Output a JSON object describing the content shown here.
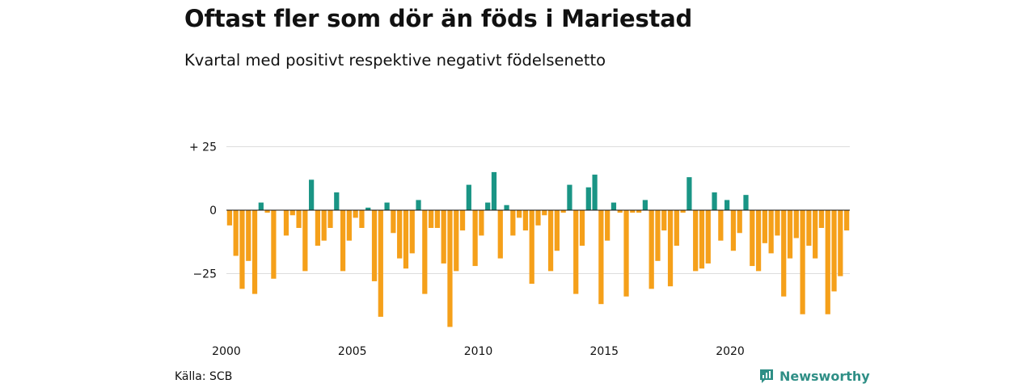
{
  "title": "Oftast fler som dör än föds i Mariestad",
  "subtitle": "Kvartal med positivt respektive negativt födelsenetto",
  "source": "Källa: SCB",
  "brand": {
    "name": "Newsworthy",
    "icon": "newsworthy-logo-icon",
    "color": "#2f8f86"
  },
  "chart_data": {
    "type": "bar",
    "title": "Oftast fler som dör än föds i Mariestad",
    "subtitle": "Kvartal med positivt respektive negativt födelsenetto",
    "xlabel": "",
    "ylabel": "",
    "x_ticks": [
      {
        "year": 2000,
        "label": "2000"
      },
      {
        "year": 2005,
        "label": "2005"
      },
      {
        "year": 2010,
        "label": "2010"
      },
      {
        "year": 2015,
        "label": "2015"
      },
      {
        "year": 2020,
        "label": "2020"
      }
    ],
    "y_ticks": [
      {
        "value": 25,
        "label": "+ 25"
      },
      {
        "value": 0,
        "label": "0"
      },
      {
        "value": -25,
        "label": "−25"
      }
    ],
    "ylim": [
      -46,
      25
    ],
    "start_year": 2000,
    "grid": true,
    "colors": {
      "positive": "#1a9585",
      "negative": "#f5a01a"
    },
    "values": [
      -6,
      -18,
      -31,
      -20,
      -33,
      3,
      -1,
      -27,
      0,
      -10,
      -2,
      -7,
      -24,
      12,
      -14,
      -12,
      -7,
      7,
      -24,
      -12,
      -3,
      -7,
      1,
      -28,
      -42,
      3,
      -9,
      -19,
      -23,
      -17,
      4,
      -33,
      -7,
      -7,
      -21,
      -46,
      -24,
      -8,
      10,
      -22,
      -10,
      3,
      15,
      -19,
      2,
      -10,
      -3,
      -8,
      -29,
      -6,
      -2,
      -24,
      -16,
      -1,
      10,
      -33,
      -14,
      9,
      14,
      -37,
      -12,
      3,
      -1,
      -34,
      -1,
      -1,
      4,
      -31,
      -20,
      -8,
      -30,
      -14,
      -1,
      13,
      -24,
      -23,
      -21,
      7,
      -12,
      4,
      -16,
      -9,
      6,
      -22,
      -24,
      -13,
      -17,
      -10,
      -34,
      -19,
      -11,
      -41,
      -14,
      -19,
      -7,
      -41,
      -32,
      -26,
      -8
    ]
  }
}
